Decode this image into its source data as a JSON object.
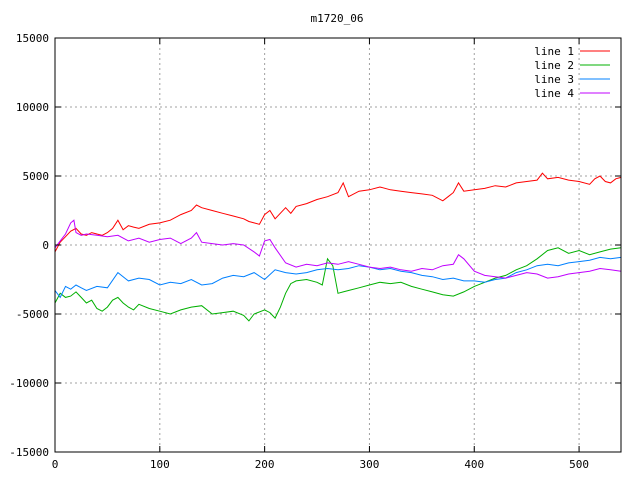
{
  "chart_data": {
    "type": "line",
    "title": "m1720_06",
    "xlabel": "",
    "ylabel": "",
    "xlim": [
      0,
      540
    ],
    "ylim": [
      -15000,
      15000
    ],
    "xticks": [
      0,
      100,
      200,
      300,
      400,
      500
    ],
    "yticks": [
      -15000,
      -10000,
      -5000,
      0,
      5000,
      10000,
      15000
    ],
    "grid": true,
    "legend_position": "top-right",
    "series": [
      {
        "name": "line 1",
        "color": "#ff0000",
        "x": [
          0,
          5,
          10,
          15,
          20,
          25,
          30,
          35,
          40,
          45,
          50,
          55,
          60,
          65,
          70,
          75,
          80,
          90,
          100,
          110,
          120,
          130,
          135,
          140,
          150,
          160,
          170,
          180,
          185,
          190,
          195,
          200,
          205,
          210,
          220,
          225,
          230,
          240,
          250,
          260,
          270,
          275,
          280,
          290,
          300,
          310,
          320,
          330,
          340,
          350,
          360,
          370,
          375,
          380,
          385,
          390,
          400,
          410,
          420,
          430,
          440,
          450,
          460,
          465,
          470,
          480,
          490,
          500,
          510,
          515,
          520,
          525,
          530,
          535,
          540
        ],
        "values": [
          -500,
          200,
          600,
          1000,
          1200,
          800,
          700,
          900,
          800,
          700,
          900,
          1200,
          1800,
          1100,
          1400,
          1300,
          1200,
          1500,
          1600,
          1800,
          2200,
          2500,
          2900,
          2700,
          2500,
          2300,
          2100,
          1900,
          1700,
          1600,
          1500,
          2200,
          2500,
          1900,
          2700,
          2300,
          2800,
          3000,
          3300,
          3500,
          3800,
          4500,
          3500,
          3900,
          4000,
          4200,
          4000,
          3900,
          3800,
          3700,
          3600,
          3200,
          3500,
          3800,
          4500,
          3900,
          4000,
          4100,
          4300,
          4200,
          4500,
          4600,
          4700,
          5200,
          4800,
          4900,
          4700,
          4600,
          4400,
          4800,
          5000,
          4600,
          4500,
          4800,
          4900
        ]
      },
      {
        "name": "line 2",
        "color": "#00b000",
        "x": [
          0,
          5,
          10,
          15,
          20,
          25,
          30,
          35,
          40,
          45,
          50,
          55,
          60,
          65,
          70,
          75,
          80,
          90,
          100,
          110,
          120,
          130,
          140,
          150,
          160,
          170,
          180,
          185,
          190,
          200,
          205,
          210,
          215,
          220,
          225,
          230,
          240,
          250,
          255,
          260,
          265,
          270,
          275,
          280,
          290,
          300,
          310,
          320,
          330,
          340,
          350,
          360,
          370,
          380,
          390,
          400,
          410,
          420,
          430,
          440,
          450,
          460,
          470,
          480,
          490,
          500,
          510,
          520,
          530,
          540
        ],
        "values": [
          -4200,
          -3500,
          -3800,
          -3700,
          -3400,
          -3800,
          -4200,
          -4000,
          -4600,
          -4800,
          -4500,
          -4000,
          -3800,
          -4200,
          -4500,
          -4700,
          -4300,
          -4600,
          -4800,
          -5000,
          -4700,
          -4500,
          -4400,
          -5000,
          -4900,
          -4800,
          -5100,
          -5500,
          -5000,
          -4700,
          -4900,
          -5300,
          -4500,
          -3500,
          -2800,
          -2600,
          -2500,
          -2700,
          -2900,
          -1000,
          -1500,
          -3500,
          -3400,
          -3300,
          -3100,
          -2900,
          -2700,
          -2800,
          -2700,
          -3000,
          -3200,
          -3400,
          -3600,
          -3700,
          -3400,
          -3000,
          -2700,
          -2400,
          -2200,
          -1800,
          -1500,
          -1000,
          -400,
          -200,
          -600,
          -400,
          -700,
          -500,
          -300,
          -200
        ]
      },
      {
        "name": "line 3",
        "color": "#0080ff",
        "x": [
          0,
          5,
          10,
          15,
          20,
          25,
          30,
          40,
          50,
          60,
          70,
          80,
          90,
          100,
          110,
          120,
          130,
          140,
          150,
          160,
          170,
          180,
          190,
          200,
          210,
          220,
          230,
          240,
          250,
          260,
          270,
          280,
          290,
          300,
          310,
          320,
          330,
          340,
          350,
          360,
          370,
          380,
          390,
          400,
          410,
          420,
          430,
          440,
          450,
          460,
          470,
          480,
          490,
          500,
          510,
          520,
          530,
          540
        ],
        "values": [
          -3300,
          -3800,
          -3000,
          -3200,
          -2900,
          -3100,
          -3300,
          -3000,
          -3100,
          -2000,
          -2600,
          -2400,
          -2500,
          -2900,
          -2700,
          -2800,
          -2500,
          -2900,
          -2800,
          -2400,
          -2200,
          -2300,
          -2000,
          -2500,
          -1800,
          -2000,
          -2100,
          -2000,
          -1800,
          -1700,
          -1800,
          -1700,
          -1500,
          -1600,
          -1800,
          -1700,
          -1900,
          -2000,
          -2200,
          -2300,
          -2500,
          -2400,
          -2600,
          -2600,
          -2700,
          -2500,
          -2400,
          -2000,
          -1800,
          -1500,
          -1400,
          -1500,
          -1300,
          -1200,
          -1100,
          -900,
          -1000,
          -900
        ]
      },
      {
        "name": "line 4",
        "color": "#c000ff",
        "x": [
          0,
          5,
          10,
          15,
          18,
          20,
          25,
          30,
          40,
          50,
          60,
          70,
          80,
          90,
          100,
          110,
          120,
          130,
          135,
          140,
          150,
          160,
          170,
          180,
          190,
          195,
          200,
          205,
          210,
          220,
          230,
          240,
          250,
          260,
          270,
          280,
          290,
          300,
          310,
          320,
          330,
          340,
          350,
          360,
          370,
          380,
          385,
          390,
          400,
          410,
          420,
          430,
          440,
          450,
          460,
          470,
          480,
          490,
          500,
          510,
          520,
          530,
          540
        ],
        "values": [
          -200,
          300,
          800,
          1600,
          1800,
          900,
          700,
          800,
          700,
          600,
          700,
          300,
          500,
          200,
          400,
          500,
          100,
          500,
          900,
          200,
          100,
          0,
          100,
          0,
          -500,
          -800,
          300,
          400,
          -200,
          -1300,
          -1600,
          -1400,
          -1500,
          -1300,
          -1400,
          -1200,
          -1400,
          -1600,
          -1700,
          -1600,
          -1800,
          -1900,
          -1700,
          -1800,
          -1500,
          -1400,
          -700,
          -1000,
          -1900,
          -2200,
          -2300,
          -2400,
          -2200,
          -2000,
          -2100,
          -2400,
          -2300,
          -2100,
          -2000,
          -1900,
          -1700,
          -1800,
          -1900
        ]
      }
    ]
  }
}
